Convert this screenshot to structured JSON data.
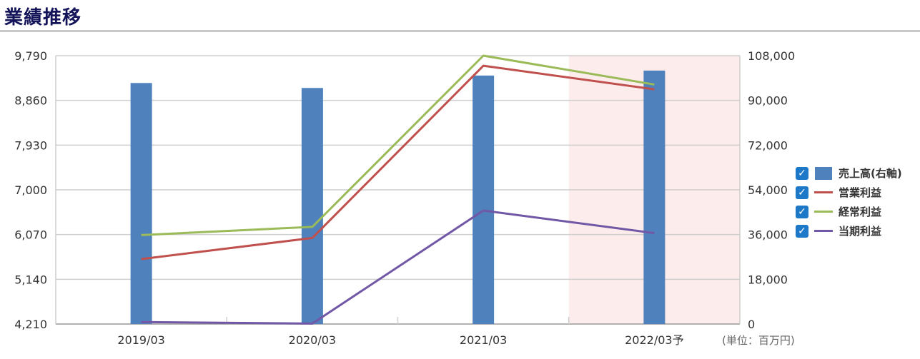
{
  "page": {
    "title": "業績推移",
    "unit_note": "(単位：百万円)"
  },
  "colors": {
    "sales": "#4f81bd",
    "operating": "#c0504d",
    "ordinary": "#9bbb59",
    "net": "#7158a6",
    "forecast_bg": "#fdecec",
    "checkbox": "#1e78c8"
  },
  "legend": [
    {
      "label": "売上高(右軸)",
      "checked": true,
      "marker": "bar",
      "color": "#4f81bd"
    },
    {
      "label": "営業利益",
      "checked": true,
      "marker": "line",
      "color": "#c0504d"
    },
    {
      "label": "経常利益",
      "checked": true,
      "marker": "line",
      "color": "#9bbb59"
    },
    {
      "label": "当期利益",
      "checked": true,
      "marker": "line",
      "color": "#7158a6"
    }
  ],
  "chart_data": {
    "type": "bar",
    "categories": [
      "2019/03",
      "2020/03",
      "2021/03",
      "2022/03予"
    ],
    "forecast_category": "2022/03予",
    "left_axis": {
      "ticks": [
        "4,210",
        "5,140",
        "6,070",
        "7,000",
        "7,930",
        "8,860",
        "9,790"
      ],
      "range": [
        4210,
        9790
      ]
    },
    "right_axis": {
      "ticks": [
        "0",
        "18,000",
        "36,000",
        "54,000",
        "72,000",
        "90,000",
        "108,000"
      ],
      "range": [
        0,
        108000
      ]
    },
    "grid": true,
    "legend_position": "right",
    "series": [
      {
        "name": "売上高(右軸)",
        "type": "bar",
        "axis": "right",
        "values": [
          97000,
          95000,
          100000,
          102000
        ]
      },
      {
        "name": "営業利益",
        "type": "line",
        "axis": "left",
        "values": [
          5560,
          6000,
          9580,
          9090
        ]
      },
      {
        "name": "経常利益",
        "type": "line",
        "axis": "left",
        "values": [
          6060,
          6230,
          9790,
          9190
        ]
      },
      {
        "name": "当期利益",
        "type": "line",
        "axis": "left",
        "values": [
          4250,
          4220,
          6570,
          6100
        ]
      }
    ]
  }
}
